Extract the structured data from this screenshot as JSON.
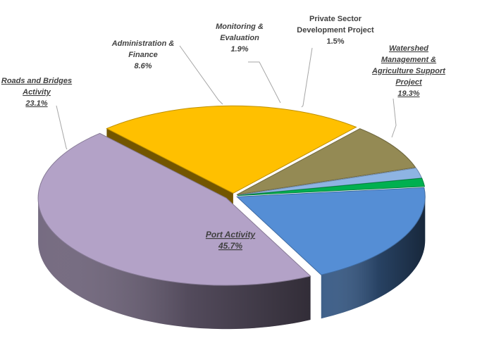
{
  "chart_data": {
    "type": "pie",
    "title": "",
    "legend": "none",
    "three_d": true,
    "slices": [
      {
        "label_lines": [
          "Watershed",
          "Management &",
          "Agriculture Support",
          "Project"
        ],
        "value": 19.3,
        "value_label": "19.3%",
        "color": "#558ed5",
        "italic": true,
        "underline": true
      },
      {
        "label_lines": [
          "Port Activity"
        ],
        "value": 45.7,
        "value_label": "45.7%",
        "color": "#b3a2c7",
        "italic": true,
        "underline": true
      },
      {
        "label_lines": [
          "Roads and Bridges",
          "Activity"
        ],
        "value": 23.1,
        "value_label": "23.1%",
        "color": "#ffc000",
        "italic": true,
        "underline": true
      },
      {
        "label_lines": [
          "Administration &",
          "Finance"
        ],
        "value": 8.6,
        "value_label": "8.6%",
        "color": "#948a54",
        "italic": true,
        "underline": false
      },
      {
        "label_lines": [
          "Monitoring &",
          "Evaluation"
        ],
        "value": 1.9,
        "value_label": "1.9%",
        "color": "#8eb4e3",
        "italic": true,
        "underline": false
      },
      {
        "label_lines": [
          "Private Sector",
          "Development Project"
        ],
        "value": 1.5,
        "value_label": "1.5%",
        "color": "#00b050",
        "italic": false,
        "underline": false
      }
    ]
  }
}
